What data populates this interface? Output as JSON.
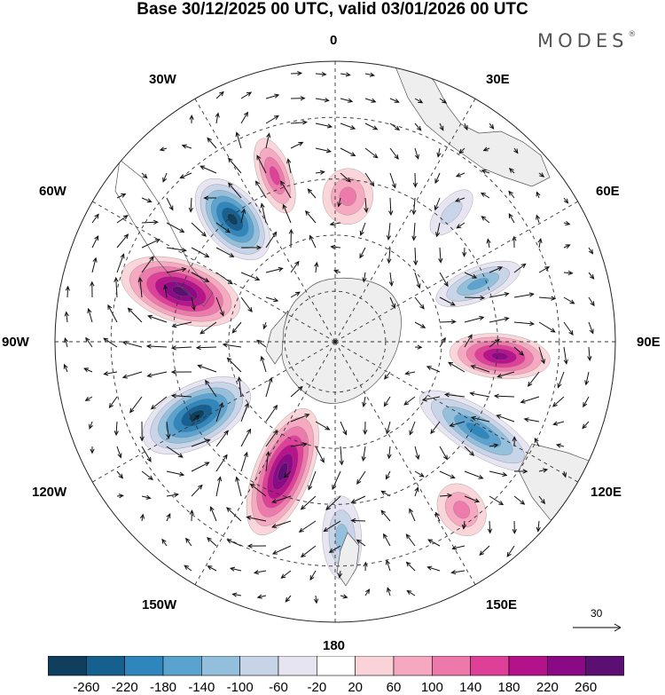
{
  "header": {
    "title": "Base 30/12/2025 00 UTC, valid 03/01/2026 00 UTC",
    "brand": "MODES",
    "brand_mark": "®"
  },
  "map": {
    "projection": "south polar stereographic",
    "longitude_labels": {
      "lon_0": "0",
      "lon_30e": "30E",
      "lon_60e": "60E",
      "lon_90e": "90E",
      "lon_120e": "120E",
      "lon_150e": "150E",
      "lon_180": "180",
      "lon_150w": "150W",
      "lon_120w": "120W",
      "lon_90w": "90W",
      "lon_60w": "60W",
      "lon_30w": "30W"
    },
    "wind_reference": {
      "label": "30"
    },
    "anomaly_centers": [
      {
        "sign": "negative",
        "bearing_deg": -40,
        "distance": 0.57,
        "rx": 0.17,
        "ry": 0.1,
        "value": -240
      },
      {
        "sign": "positive",
        "bearing_deg": -72,
        "distance": 0.58,
        "rx": 0.22,
        "ry": 0.11,
        "value": 240
      },
      {
        "sign": "negative",
        "bearing_deg": -118,
        "distance": 0.56,
        "rx": 0.21,
        "ry": 0.11,
        "value": -260
      },
      {
        "sign": "positive",
        "bearing_deg": -158,
        "distance": 0.5,
        "rx": 0.24,
        "ry": 0.1,
        "value": 240
      },
      {
        "sign": "negative",
        "bearing_deg": 178,
        "distance": 0.7,
        "rx": 0.15,
        "ry": 0.07,
        "value": -80
      },
      {
        "sign": "positive",
        "bearing_deg": 143,
        "distance": 0.75,
        "rx": 0.1,
        "ry": 0.08,
        "value": 100
      },
      {
        "sign": "negative",
        "bearing_deg": 122,
        "distance": 0.6,
        "rx": 0.24,
        "ry": 0.08,
        "value": -160
      },
      {
        "sign": "positive",
        "bearing_deg": 95,
        "distance": 0.59,
        "rx": 0.18,
        "ry": 0.08,
        "value": 200
      },
      {
        "sign": "negative",
        "bearing_deg": 68,
        "distance": 0.55,
        "rx": 0.16,
        "ry": 0.06,
        "value": -120
      },
      {
        "sign": "positive",
        "bearing_deg": -20,
        "distance": 0.63,
        "rx": 0.14,
        "ry": 0.06,
        "value": 140
      },
      {
        "sign": "positive",
        "bearing_deg": 5,
        "distance": 0.52,
        "rx": 0.1,
        "ry": 0.09,
        "value": 80
      },
      {
        "sign": "negative",
        "bearing_deg": 42,
        "distance": 0.62,
        "rx": 0.1,
        "ry": 0.05,
        "value": -60
      }
    ]
  },
  "colorbar": {
    "labels": [
      "-260",
      "-220",
      "-180",
      "-140",
      "-100",
      "-60",
      "-20",
      "20",
      "60",
      "100",
      "140",
      "180",
      "220",
      "260"
    ],
    "colors": [
      "#0f3f5c",
      "#15608f",
      "#2f86bc",
      "#5aa3cf",
      "#93bfdc",
      "#c7d4e8",
      "#e6e4f1",
      "#ffffff",
      "#fad3d8",
      "#f5a8c0",
      "#ec79aa",
      "#de3f97",
      "#b3128a",
      "#8a0a85",
      "#5c0f73"
    ]
  }
}
